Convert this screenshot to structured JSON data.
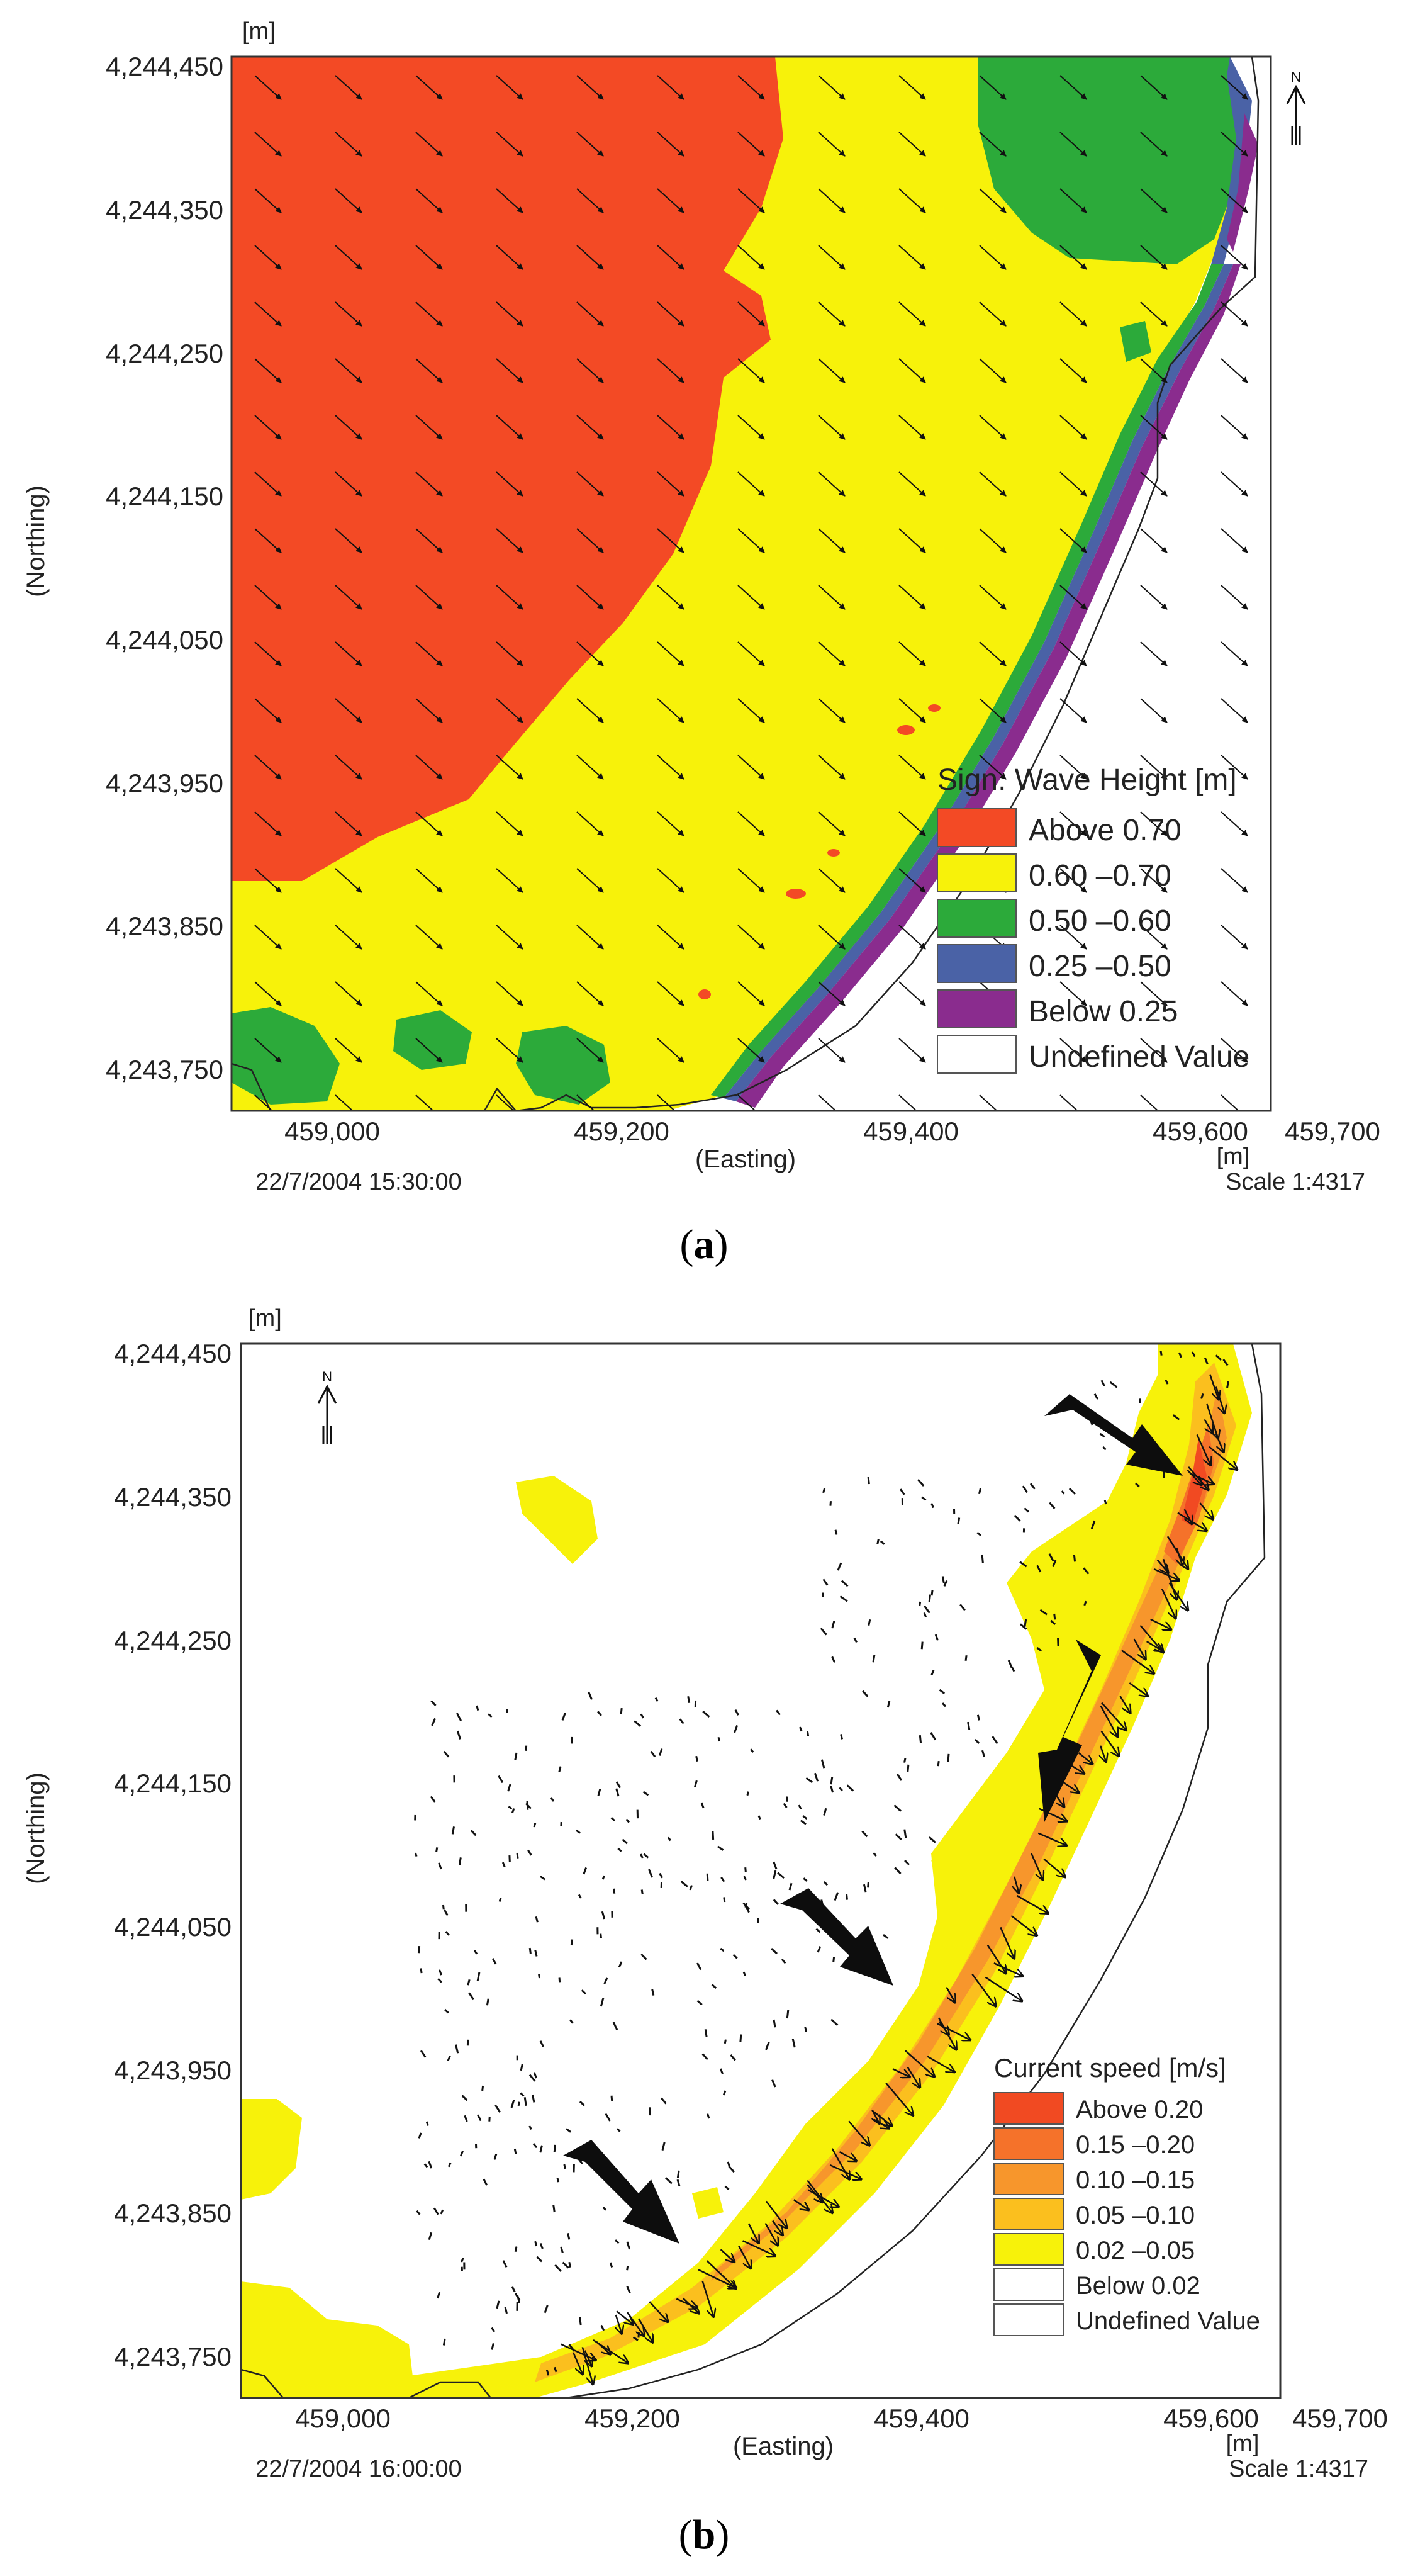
{
  "panels": {
    "a": {
      "label_open": "(",
      "label_letter": "a",
      "label_close": ")",
      "unit_top": "[m]",
      "y_axis_label": "(Northing)",
      "x_axis_label": "(Easting)",
      "x_unit": "[m]",
      "timestamp": "22/7/2004 15:30:00",
      "scale": "Scale 1:4317",
      "y_ticks": [
        "4,244,450",
        "4,244,350",
        "4,244,250",
        "4,244,150",
        "4,244,050",
        "4,243,950",
        "4,243,850",
        "4,243,750"
      ],
      "x_ticks": [
        "459,000",
        "459,200",
        "459,400",
        "459,600",
        "459,700"
      ],
      "legend": {
        "title": "Sign. Wave Height [m]",
        "items": [
          {
            "label": "Above 0.70",
            "color": "#f34a25"
          },
          {
            "label": " 0.60 –0.70",
            "color": "#f7f20a"
          },
          {
            "label": " 0.50 –0.60",
            "color": "#2caa3a"
          },
          {
            "label": " 0.25 –0.50",
            "color": "#4a62a6"
          },
          {
            "label": "Below 0.25",
            "color": "#8a2c8e"
          },
          {
            "label": "Undefined Value",
            "color": "#ffffff"
          }
        ]
      }
    },
    "b": {
      "label_open": "(",
      "label_letter": "b",
      "label_close": ")",
      "unit_top": "[m]",
      "y_axis_label": "(Northing)",
      "x_axis_label": "(Easting)",
      "x_unit": "[m]",
      "timestamp": "22/7/2004 16:00:00",
      "scale": "Scale 1:4317",
      "y_ticks": [
        "4,244,450",
        "4,244,350",
        "4,244,250",
        "4,244,150",
        "4,244,050",
        "4,243,950",
        "4,243,850",
        "4,243,750"
      ],
      "x_ticks": [
        "459,000",
        "459,200",
        "459,400",
        "459,600",
        "459,700"
      ],
      "legend": {
        "title": "Current speed [m/s]",
        "items": [
          {
            "label": "Above 0.20",
            "color": "#f14a22"
          },
          {
            "label": " 0.15 –0.20",
            "color": "#f5722a"
          },
          {
            "label": " 0.10 –0.15",
            "color": "#f7962c"
          },
          {
            "label": " 0.05 –0.10",
            "color": "#fbbf1e"
          },
          {
            "label": " 0.02 –0.05",
            "color": "#f7f20a"
          },
          {
            "label": "Below 0.02",
            "color": "#ffffff"
          },
          {
            "label": "Undefined Value",
            "color": "#ffffff"
          }
        ]
      }
    }
  },
  "compass": {
    "north_label": "N"
  }
}
